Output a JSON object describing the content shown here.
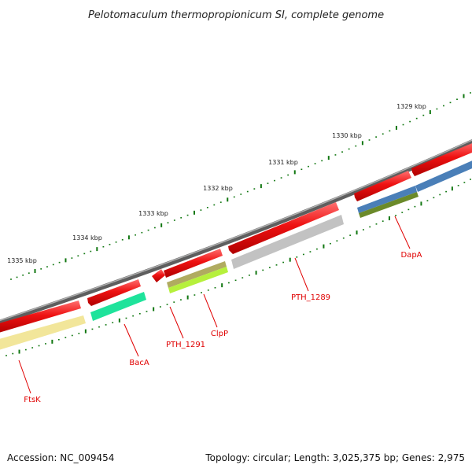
{
  "title": "Pelotomaculum thermopropionicum SI, complete genome",
  "accession": "Accession: NC_009454",
  "summary": "Topology: circular; Length: 3,025,375 bp; Genes: 2,975",
  "ruler": {
    "labels": [
      "1329 kbp",
      "1330 kbp",
      "1331 kbp",
      "1332 kbp",
      "1333 kbp",
      "1334 kbp",
      "1335 kbp"
    ]
  },
  "genes": [
    {
      "name": "FtsK",
      "track_color": "#f2e69a"
    },
    {
      "name": "BacA",
      "track_color": "#1ee39b"
    },
    {
      "name": "PTH_1291",
      "track_color": "#b0ab60"
    },
    {
      "name": "ClpP",
      "track_color": "#b6f03c"
    },
    {
      "name": "PTH_1289",
      "track_color": "#c2c2c2"
    },
    {
      "name": "DapA",
      "track_color": "#4a7fb8"
    }
  ],
  "colors": {
    "cds": "#ee1111",
    "backbone": "#888888",
    "tick": "#117711",
    "label": "#e00000"
  }
}
